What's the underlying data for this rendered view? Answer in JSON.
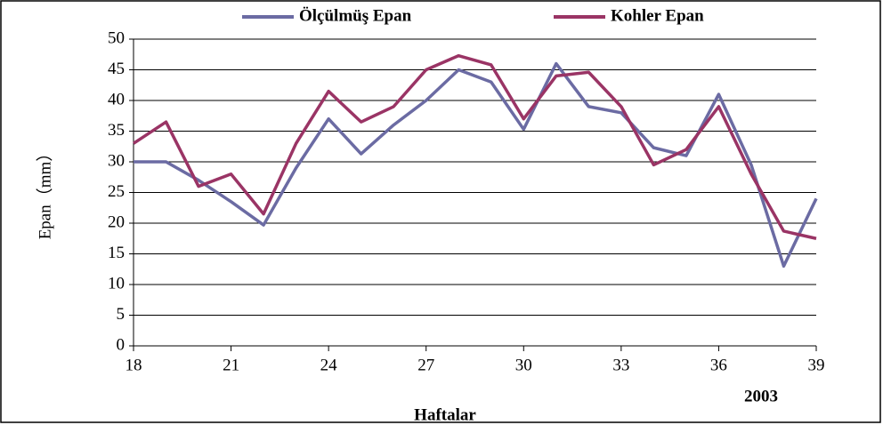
{
  "chart_data": {
    "type": "line",
    "x_label": "Haftalar",
    "y_label": "Epan（mm）",
    "annotation": "2003",
    "x": [
      18,
      19,
      20,
      21,
      22,
      23,
      24,
      25,
      26,
      27,
      28,
      29,
      30,
      31,
      32,
      33,
      34,
      35,
      36,
      37,
      38,
      39
    ],
    "series": [
      {
        "name": "Ölçülmüş Epan",
        "color": "#6b6ba3",
        "values": [
          30,
          30,
          27,
          23.5,
          19.7,
          29,
          37,
          31.3,
          36,
          40,
          45,
          43,
          35.3,
          46,
          39,
          38,
          32.3,
          31,
          41,
          29.5,
          13,
          24
        ]
      },
      {
        "name": "Kohler Epan",
        "color": "#9a3465",
        "values": [
          33,
          36.5,
          26,
          28,
          21.5,
          33,
          41.5,
          36.5,
          39,
          45,
          47.3,
          45.8,
          37,
          44,
          44.6,
          39,
          29.5,
          32,
          39,
          28,
          18.7,
          17.5
        ]
      }
    ],
    "xlim": [
      18,
      39
    ],
    "xticks": [
      18,
      21,
      24,
      27,
      30,
      33,
      36,
      39
    ],
    "ylim": [
      0,
      50
    ],
    "yticks": [
      0,
      5,
      10,
      15,
      20,
      25,
      30,
      35,
      40,
      45,
      50
    ],
    "grid": true,
    "legend": "top"
  }
}
